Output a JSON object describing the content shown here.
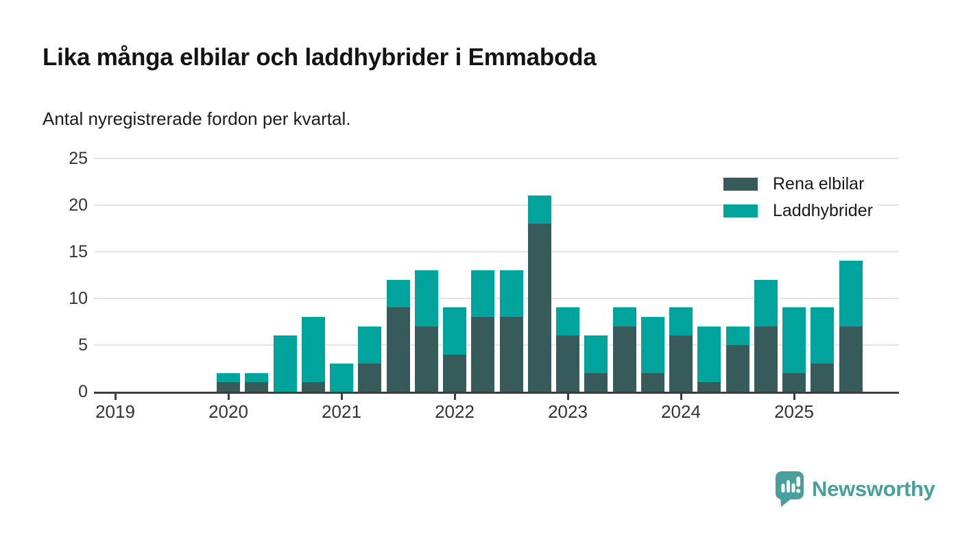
{
  "header": {
    "title": "Lika många elbilar och laddhybrider i Emmaboda",
    "subtitle": "Antal nyregistrerade fordon per kvartal."
  },
  "chart_data": {
    "type": "bar",
    "stacked": true,
    "title": "Lika många elbilar och laddhybrider i Emmaboda",
    "subtitle": "Antal nyregistrerade fordon per kvartal.",
    "xlabel": "",
    "ylabel": "",
    "ylim": [
      0,
      25
    ],
    "grid": "horizontal",
    "legend_position": "top-right",
    "y_ticks": [
      0,
      5,
      10,
      15,
      20,
      25
    ],
    "x_tick_labels": [
      "2019",
      "2020",
      "2021",
      "2022",
      "2023",
      "2024",
      "2025"
    ],
    "quarters": [
      "2019 Q1",
      "2019 Q2",
      "2019 Q3",
      "2019 Q4",
      "2020 Q1",
      "2020 Q2",
      "2020 Q3",
      "2020 Q4",
      "2021 Q1",
      "2021 Q2",
      "2021 Q3",
      "2021 Q4",
      "2022 Q1",
      "2022 Q2",
      "2022 Q3",
      "2022 Q4",
      "2023 Q1",
      "2023 Q2",
      "2023 Q3",
      "2023 Q4",
      "2024 Q1",
      "2024 Q2",
      "2024 Q3",
      "2024 Q4",
      "2025 Q1",
      "2025 Q2",
      "2025 Q3"
    ],
    "series": [
      {
        "name": "Rena elbilar",
        "color": "#365b5a",
        "values": [
          0,
          0,
          0,
          0,
          1,
          1,
          0,
          1,
          0,
          3,
          9,
          7,
          4,
          8,
          8,
          18,
          6,
          2,
          7,
          2,
          6,
          1,
          5,
          7,
          2,
          3,
          7
        ]
      },
      {
        "name": "Laddhybrider",
        "color": "#00a49c",
        "values": [
          0,
          0,
          0,
          0,
          1,
          1,
          6,
          7,
          3,
          4,
          3,
          6,
          5,
          5,
          5,
          3,
          3,
          4,
          2,
          6,
          3,
          6,
          2,
          5,
          7,
          6,
          7
        ]
      }
    ]
  },
  "branding": {
    "name": "Newsworthy",
    "color": "#48a09d"
  }
}
